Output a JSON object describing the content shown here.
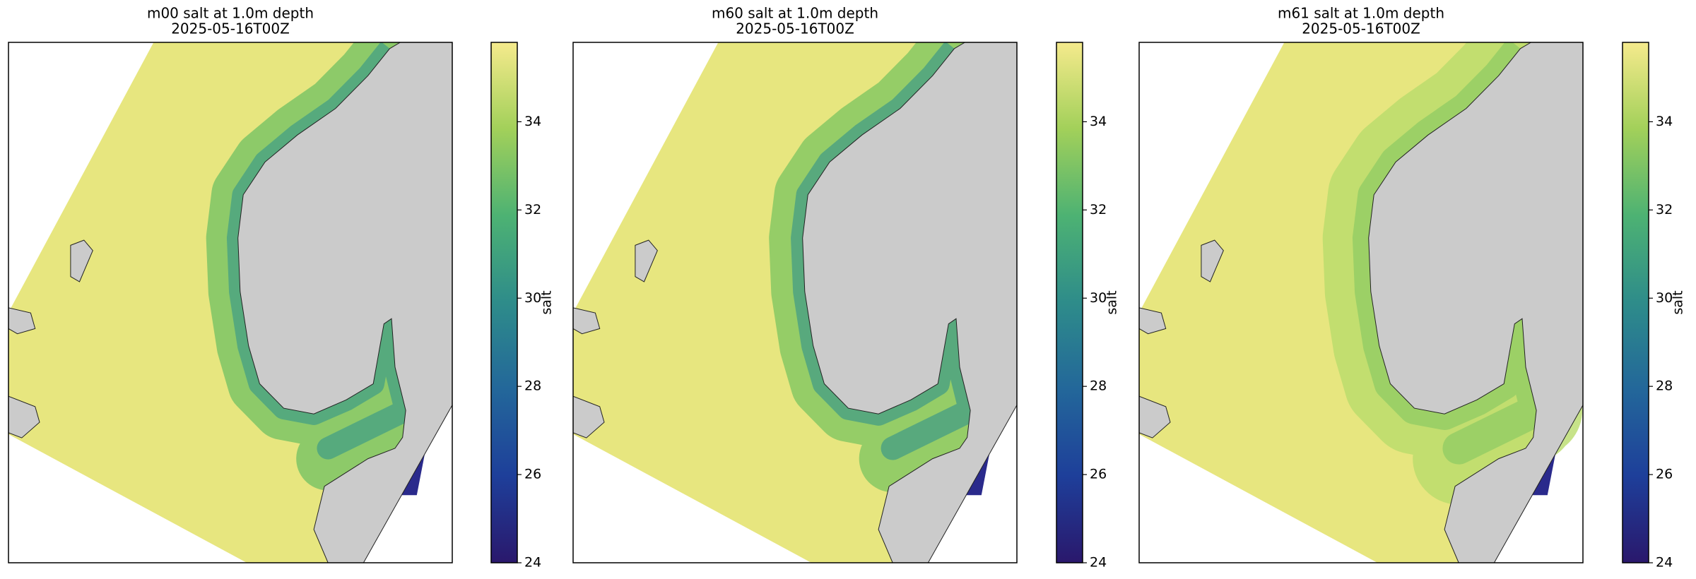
{
  "panels": [
    {
      "title": "m00 salt at 1.0m depth",
      "subtitle": "2025-05-16T00Z",
      "colorbar": {
        "label": "salt",
        "lim": [
          24,
          35.8
        ],
        "ticks": [
          24,
          26,
          28,
          30,
          32,
          34
        ]
      }
    },
    {
      "title": "m60 salt at 1.0m depth",
      "subtitle": "2025-05-16T00Z",
      "colorbar": {
        "label": "salt",
        "lim": [
          24,
          35.8
        ],
        "ticks": [
          24,
          26,
          28,
          30,
          32,
          34
        ]
      }
    },
    {
      "title": "m61 salt at 1.0m depth",
      "subtitle": "2025-05-16T00Z",
      "colorbar": {
        "label": "salt",
        "lim": [
          24,
          35.8
        ],
        "ticks": [
          24,
          26,
          28,
          30,
          32,
          34
        ]
      }
    }
  ],
  "colormap": [
    "#2a186c",
    "#1e3f9a",
    "#23679a",
    "#2e8c8a",
    "#4db273",
    "#a2d05a",
    "#f5ea8c"
  ]
}
